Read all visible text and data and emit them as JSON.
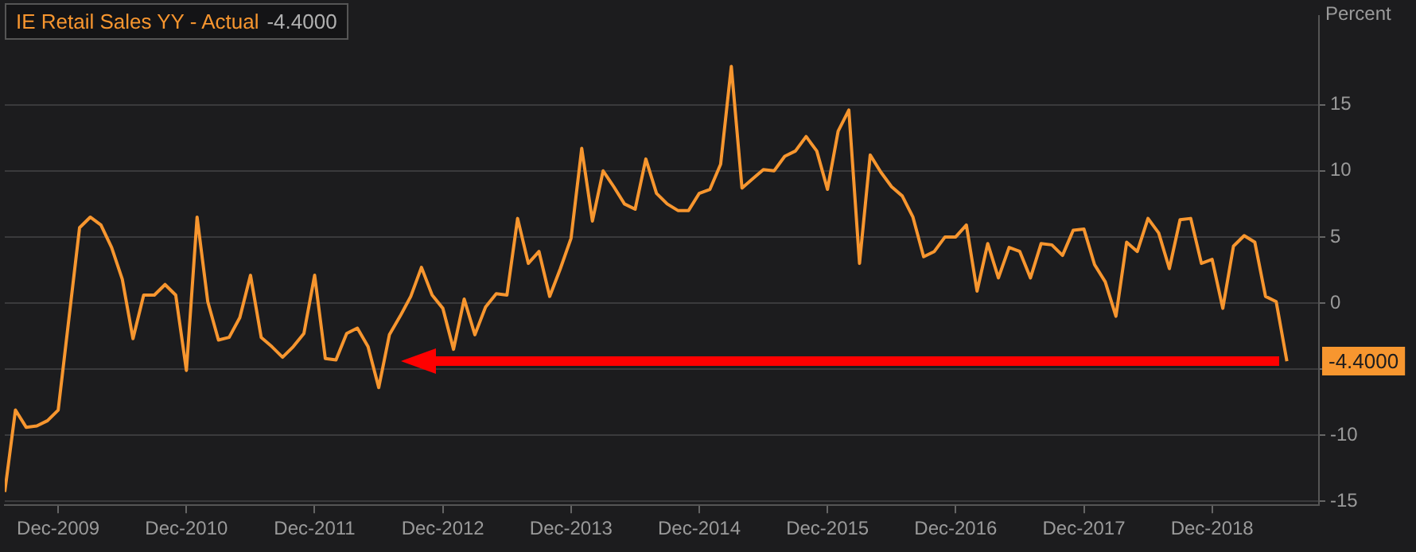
{
  "chart_data": {
    "type": "line",
    "ylabel": "Percent",
    "legend": "top left",
    "grid": "y",
    "marker": "none",
    "line_style": "solid",
    "x": [
      "2009-07",
      "2009-08",
      "2009-09",
      "2009-10",
      "2009-11",
      "2009-12",
      "2010-01",
      "2010-02",
      "2010-03",
      "2010-04",
      "2010-05",
      "2010-06",
      "2010-07",
      "2010-08",
      "2010-09",
      "2010-10",
      "2010-11",
      "2010-12",
      "2011-01",
      "2011-02",
      "2011-03",
      "2011-04",
      "2011-05",
      "2011-06",
      "2011-07",
      "2011-08",
      "2011-09",
      "2011-10",
      "2011-11",
      "2011-12",
      "2012-01",
      "2012-02",
      "2012-03",
      "2012-04",
      "2012-05",
      "2012-06",
      "2012-07",
      "2012-08",
      "2012-09",
      "2012-10",
      "2012-11",
      "2012-12",
      "2013-01",
      "2013-02",
      "2013-03",
      "2013-04",
      "2013-05",
      "2013-06",
      "2013-07",
      "2013-08",
      "2013-09",
      "2013-10",
      "2013-11",
      "2013-12",
      "2014-01",
      "2014-02",
      "2014-03",
      "2014-04",
      "2014-05",
      "2014-06",
      "2014-07",
      "2014-08",
      "2014-09",
      "2014-10",
      "2014-11",
      "2014-12",
      "2015-01",
      "2015-02",
      "2015-03",
      "2015-04",
      "2015-05",
      "2015-06",
      "2015-07",
      "2015-08",
      "2015-09",
      "2015-10",
      "2015-11",
      "2015-12",
      "2016-01",
      "2016-02",
      "2016-03",
      "2016-04",
      "2016-05",
      "2016-06",
      "2016-07",
      "2016-08",
      "2016-09",
      "2016-10",
      "2016-11",
      "2016-12",
      "2017-01",
      "2017-02",
      "2017-03",
      "2017-04",
      "2017-05",
      "2017-06",
      "2017-07",
      "2017-08",
      "2017-09",
      "2017-10",
      "2017-11",
      "2017-12",
      "2018-01",
      "2018-02",
      "2018-03",
      "2018-04",
      "2018-05",
      "2018-06",
      "2018-07",
      "2018-08",
      "2018-09",
      "2018-10",
      "2018-11",
      "2018-12",
      "2019-01",
      "2019-02",
      "2019-03",
      "2019-04",
      "2019-05",
      "2019-06",
      "2019-07"
    ],
    "series": [
      {
        "name": "IE Retail Sales YY - Actual",
        "color": "#f7962f",
        "values": [
          -14.3,
          -8.1,
          -9.4,
          -9.3,
          -8.9,
          -8.1,
          -1.2,
          5.7,
          6.5,
          5.9,
          4.2,
          1.8,
          -2.7,
          0.6,
          0.6,
          1.4,
          0.6,
          -5.1,
          6.5,
          0.1,
          -2.8,
          -2.6,
          -1.1,
          2.1,
          -2.6,
          -3.3,
          -4.1,
          -3.3,
          -2.3,
          2.1,
          -4.2,
          -4.3,
          -2.3,
          -1.9,
          -3.3,
          -6.4,
          -2.4,
          -1.0,
          0.5,
          2.7,
          0.6,
          -0.4,
          -3.5,
          0.3,
          -2.4,
          -0.3,
          0.7,
          0.6,
          6.4,
          3.0,
          3.9,
          0.5,
          2.6,
          4.9,
          11.7,
          6.2,
          10.0,
          8.8,
          7.5,
          7.1,
          10.9,
          8.3,
          7.5,
          7.0,
          7.0,
          8.3,
          8.6,
          10.5,
          17.9,
          8.7,
          9.4,
          10.1,
          10.0,
          11.1,
          11.5,
          12.6,
          11.5,
          8.6,
          13.0,
          14.6,
          3.0,
          11.2,
          9.9,
          8.8,
          8.1,
          6.5,
          3.5,
          3.9,
          5.0,
          5.0,
          5.9,
          0.9,
          4.5,
          1.9,
          4.2,
          3.9,
          1.9,
          4.5,
          4.4,
          3.6,
          5.5,
          5.6,
          2.9,
          1.6,
          -1.0,
          4.6,
          3.9,
          6.4,
          5.3,
          2.6,
          6.3,
          6.4,
          3.0,
          3.3,
          -0.4,
          4.3,
          5.1,
          4.6,
          0.5,
          0.1,
          -4.4
        ]
      }
    ],
    "annotations": [
      {
        "text": "-4.4000",
        "x": "2019-07",
        "y": -4.4
      }
    ],
    "xlim": [
      "2009-07",
      "2019-10"
    ],
    "xticks": [
      {
        "value": "2009-12",
        "label": "Dec-2009"
      },
      {
        "value": "2010-12",
        "label": "Dec-2010"
      },
      {
        "value": "2011-12",
        "label": "Dec-2011"
      },
      {
        "value": "2012-12",
        "label": "Dec-2012"
      },
      {
        "value": "2013-12",
        "label": "Dec-2013"
      },
      {
        "value": "2014-12",
        "label": "Dec-2014"
      },
      {
        "value": "2015-12",
        "label": "Dec-2015"
      },
      {
        "value": "2016-12",
        "label": "Dec-2016"
      },
      {
        "value": "2017-12",
        "label": "Dec-2017"
      },
      {
        "value": "2018-12",
        "label": "Dec-2018"
      }
    ],
    "ylim": [
      -15.3,
      21.7
    ],
    "yticks": [
      -15,
      -10,
      {
        "value": -5,
        "label": null
      },
      0,
      5,
      10,
      15
    ]
  }
}
